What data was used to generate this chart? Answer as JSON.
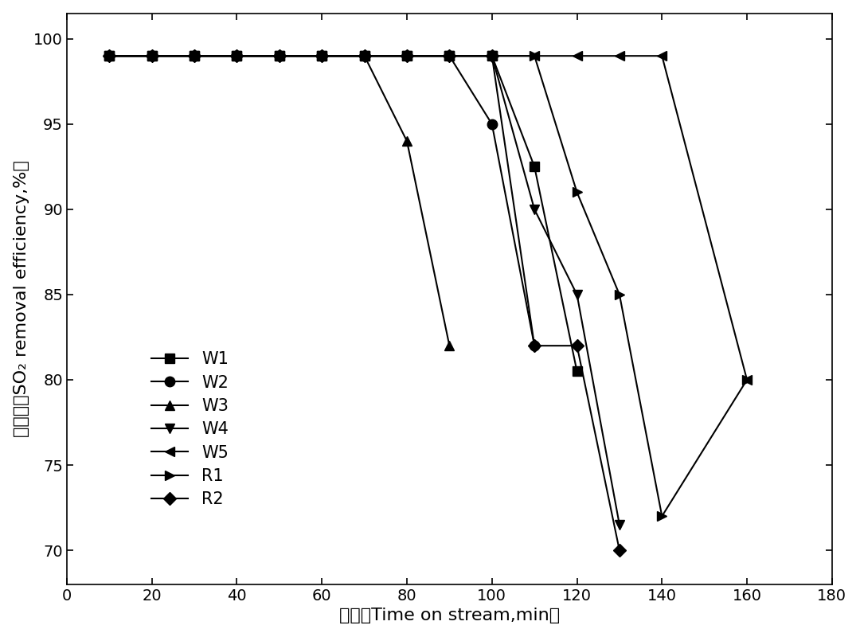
{
  "title": "",
  "xlabel_cn": "时间（Time on stream,min）",
  "ylabel_cn": "脱硫率（SO₂ removal efficiency,%）",
  "xlim": [
    0,
    180
  ],
  "ylim": [
    68,
    101.5
  ],
  "xticks": [
    0,
    20,
    40,
    60,
    80,
    100,
    120,
    140,
    160,
    180
  ],
  "yticks": [
    70,
    75,
    80,
    85,
    90,
    95,
    100
  ],
  "series": {
    "W1": {
      "x": [
        10,
        20,
        30,
        40,
        50,
        60,
        70,
        80,
        90,
        100,
        110,
        120
      ],
      "y": [
        99,
        99,
        99,
        99,
        99,
        99,
        99,
        99,
        99,
        99,
        92.5,
        80.5
      ],
      "marker": "s",
      "markersize": 9
    },
    "W2": {
      "x": [
        10,
        20,
        30,
        40,
        50,
        60,
        70,
        80,
        90,
        100,
        110
      ],
      "y": [
        99,
        99,
        99,
        99,
        99,
        99,
        99,
        99,
        99,
        95,
        82
      ],
      "marker": "o",
      "markersize": 9
    },
    "W3": {
      "x": [
        10,
        20,
        30,
        40,
        50,
        60,
        70,
        80,
        90
      ],
      "y": [
        99,
        99,
        99,
        99,
        99,
        99,
        99,
        94,
        82
      ],
      "marker": "^",
      "markersize": 9
    },
    "W4": {
      "x": [
        10,
        20,
        30,
        40,
        50,
        60,
        70,
        80,
        90,
        100,
        110,
        120,
        130
      ],
      "y": [
        99,
        99,
        99,
        99,
        99,
        99,
        99,
        99,
        99,
        99,
        90,
        85,
        71.5
      ],
      "marker": "v",
      "markersize": 9
    },
    "W5": {
      "x": [
        10,
        20,
        30,
        40,
        50,
        60,
        70,
        80,
        90,
        100,
        110,
        120,
        130,
        140,
        160
      ],
      "y": [
        99,
        99,
        99,
        99,
        99,
        99,
        99,
        99,
        99,
        99,
        99,
        99,
        99,
        99,
        80
      ],
      "marker": "<",
      "markersize": 9
    },
    "R1": {
      "x": [
        10,
        20,
        30,
        40,
        50,
        60,
        70,
        80,
        90,
        100,
        110,
        120,
        130,
        140,
        160
      ],
      "y": [
        99,
        99,
        99,
        99,
        99,
        99,
        99,
        99,
        99,
        99,
        99,
        91,
        85,
        72,
        80
      ],
      "marker": ">",
      "markersize": 9
    },
    "R2": {
      "x": [
        10,
        20,
        30,
        40,
        50,
        60,
        70,
        80,
        90,
        100,
        110,
        120,
        130
      ],
      "y": [
        99,
        99,
        99,
        99,
        99,
        99,
        99,
        99,
        99,
        99,
        82,
        82,
        70
      ],
      "marker": "D",
      "markersize": 8
    }
  },
  "legend_fontsize": 15,
  "axis_fontsize": 16,
  "tick_fontsize": 14,
  "linewidth": 1.5,
  "color": "#000000",
  "background": "#ffffff"
}
